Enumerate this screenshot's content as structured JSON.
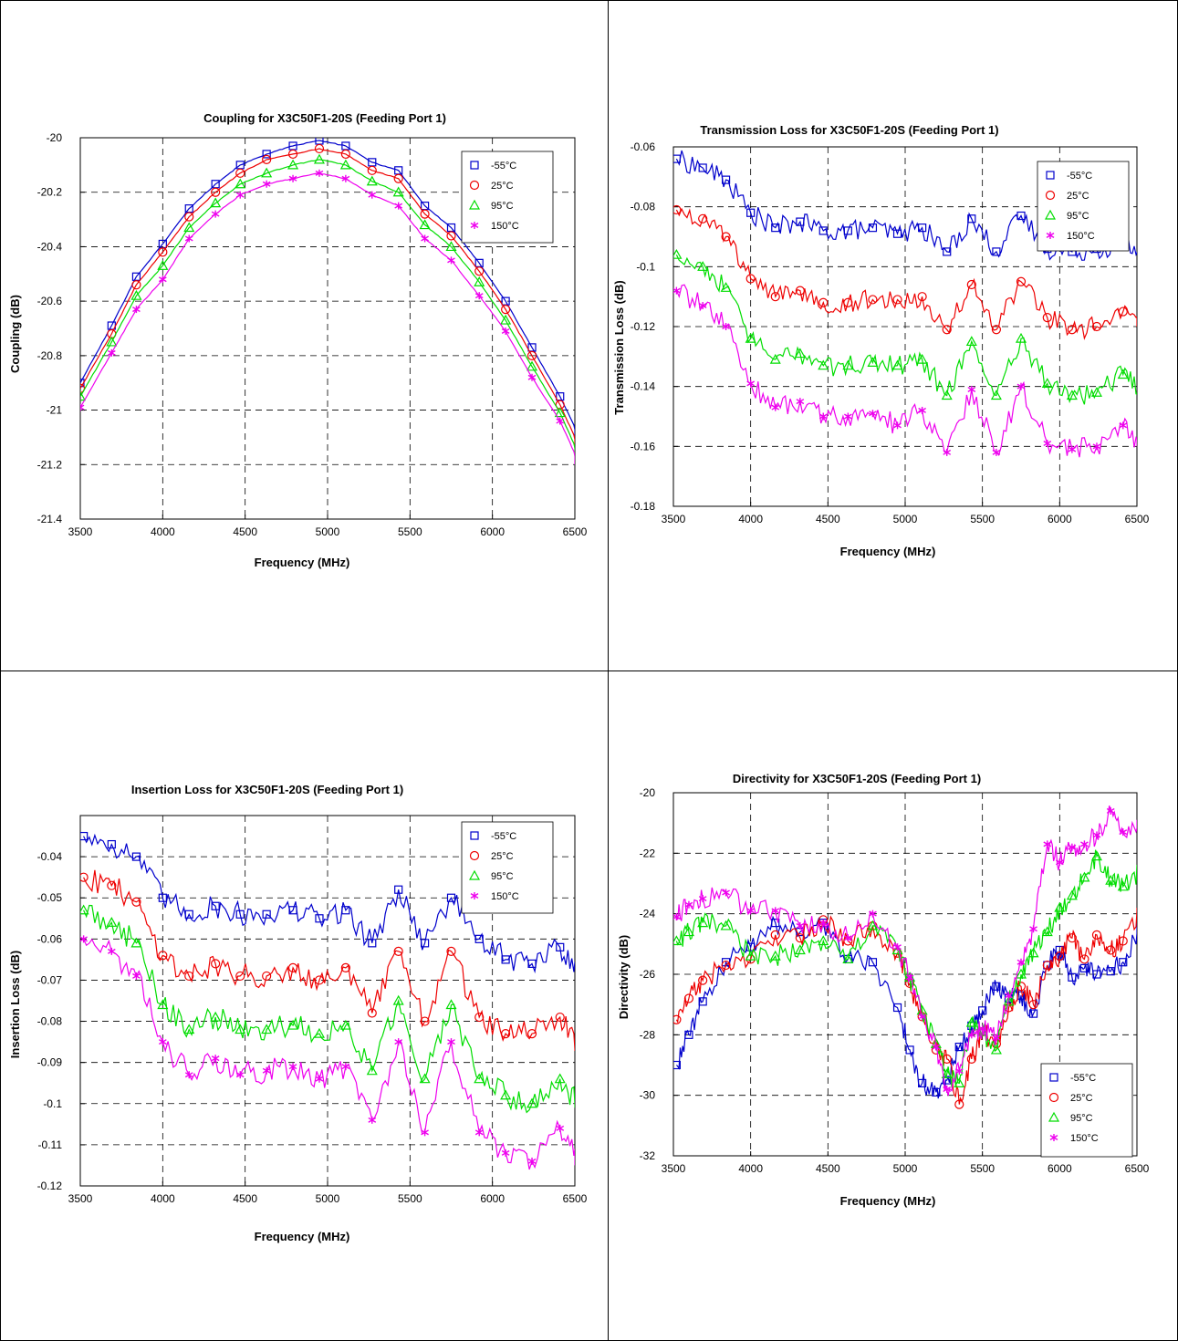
{
  "colors": {
    "s1": "#0000cc",
    "s2": "#ee0000",
    "s3": "#00dd00",
    "s4": "#ee00ee"
  },
  "chart_data": [
    {
      "type": "line",
      "title": "Coupling for X3C50F1-20S (Feeding Port 1)",
      "xlabel": "Frequency (MHz)",
      "ylabel": "Coupling (dB)",
      "xlim": [
        3500,
        6500
      ],
      "ylim": [
        -21.4,
        -20
      ],
      "xticks": [
        3500,
        4000,
        4500,
        5000,
        5500,
        6000,
        6500
      ],
      "yticks": [
        -21.4,
        -21.2,
        -21,
        -20.8,
        -20.6,
        -20.4,
        -20.2,
        -20
      ],
      "xtick_labels": [
        "3500",
        "4000",
        "4500",
        "5000",
        "5500",
        "6000",
        "6500"
      ],
      "ytick_labels": [
        "-21.4",
        "-21.2",
        "-21",
        "-20.8",
        "-20.6",
        "-20.4",
        "-20.2",
        "-20"
      ],
      "grid": true,
      "legend_position": "top-right",
      "series": [
        {
          "name": "-55°C",
          "marker": "square",
          "x": [
            3500,
            3690,
            3840,
            4000,
            4160,
            4320,
            4470,
            4630,
            4790,
            4950,
            5110,
            5270,
            5430,
            5590,
            5750,
            5920,
            6080,
            6240,
            6410,
            6530
          ],
          "values": [
            -20.9,
            -20.69,
            -20.51,
            -20.39,
            -20.26,
            -20.17,
            -20.1,
            -20.06,
            -20.03,
            -20.01,
            -20.03,
            -20.09,
            -20.12,
            -20.25,
            -20.33,
            -20.46,
            -20.6,
            -20.77,
            -20.95,
            -21.1
          ]
        },
        {
          "name": "25°C",
          "marker": "circle",
          "x": [
            3500,
            3690,
            3840,
            4000,
            4160,
            4320,
            4470,
            4630,
            4790,
            4950,
            5110,
            5270,
            5430,
            5590,
            5750,
            5920,
            6080,
            6240,
            6410,
            6530
          ],
          "values": [
            -20.92,
            -20.72,
            -20.54,
            -20.42,
            -20.29,
            -20.2,
            -20.13,
            -20.08,
            -20.06,
            -20.04,
            -20.06,
            -20.12,
            -20.15,
            -20.28,
            -20.36,
            -20.49,
            -20.63,
            -20.8,
            -20.98,
            -21.14
          ]
        },
        {
          "name": "95°C",
          "marker": "triangle",
          "x": [
            3500,
            3690,
            3840,
            4000,
            4160,
            4320,
            4470,
            4630,
            4790,
            4950,
            5110,
            5270,
            5430,
            5590,
            5750,
            5920,
            6080,
            6240,
            6410,
            6530
          ],
          "values": [
            -20.95,
            -20.75,
            -20.58,
            -20.47,
            -20.33,
            -20.24,
            -20.17,
            -20.13,
            -20.1,
            -20.08,
            -20.1,
            -20.16,
            -20.2,
            -20.32,
            -20.4,
            -20.53,
            -20.67,
            -20.84,
            -21.01,
            -21.17
          ]
        },
        {
          "name": "150°C",
          "marker": "asterisk",
          "x": [
            3500,
            3690,
            3840,
            4000,
            4160,
            4320,
            4470,
            4630,
            4790,
            4950,
            5110,
            5270,
            5430,
            5590,
            5750,
            5920,
            6080,
            6240,
            6410,
            6530
          ],
          "values": [
            -20.99,
            -20.79,
            -20.63,
            -20.52,
            -20.37,
            -20.28,
            -20.21,
            -20.17,
            -20.15,
            -20.13,
            -20.15,
            -20.21,
            -20.25,
            -20.37,
            -20.45,
            -20.58,
            -20.71,
            -20.88,
            -21.04,
            -21.2
          ]
        }
      ]
    },
    {
      "type": "line",
      "title": "Transmission Loss for X3C50F1-20S (Feeding Port 1)",
      "xlabel": "Frequency (MHz)",
      "ylabel": "Transmission Loss (dB)",
      "xlim": [
        3500,
        6500
      ],
      "ylim": [
        -0.18,
        -0.06
      ],
      "xticks": [
        3500,
        4000,
        4500,
        5000,
        5500,
        6000,
        6500
      ],
      "yticks": [
        -0.18,
        -0.16,
        -0.14,
        -0.12,
        -0.1,
        -0.08,
        -0.06
      ],
      "xtick_labels": [
        "3500",
        "4000",
        "4500",
        "5000",
        "5500",
        "6000",
        "6500"
      ],
      "ytick_labels": [
        "-0.18",
        "-0.16",
        "-0.14",
        "-0.12",
        "-0.1",
        "-0.08",
        "-0.06"
      ],
      "grid": true,
      "legend_position": "top-right",
      "series": [
        {
          "name": "-55°C",
          "marker": "square",
          "x": [
            3520,
            3690,
            3840,
            4000,
            4160,
            4320,
            4470,
            4630,
            4790,
            4950,
            5110,
            5270,
            5430,
            5590,
            5750,
            5920,
            6080,
            6240,
            6410,
            6530
          ],
          "values": [
            -0.064,
            -0.067,
            -0.071,
            -0.082,
            -0.087,
            -0.085,
            -0.088,
            -0.088,
            -0.087,
            -0.089,
            -0.087,
            -0.095,
            -0.084,
            -0.095,
            -0.083,
            -0.094,
            -0.095,
            -0.094,
            -0.093,
            -0.095
          ]
        },
        {
          "name": "25°C",
          "marker": "circle",
          "x": [
            3520,
            3690,
            3840,
            4000,
            4160,
            4320,
            4470,
            4630,
            4790,
            4950,
            5110,
            5270,
            5430,
            5590,
            5750,
            5920,
            6080,
            6240,
            6410,
            6530
          ],
          "values": [
            -0.081,
            -0.084,
            -0.09,
            -0.104,
            -0.11,
            -0.108,
            -0.112,
            -0.112,
            -0.111,
            -0.111,
            -0.11,
            -0.121,
            -0.106,
            -0.121,
            -0.105,
            -0.117,
            -0.121,
            -0.12,
            -0.115,
            -0.12
          ]
        },
        {
          "name": "95°C",
          "marker": "triangle",
          "x": [
            3520,
            3690,
            3840,
            4000,
            4160,
            4320,
            4470,
            4630,
            4790,
            4950,
            5110,
            5270,
            5430,
            5590,
            5750,
            5920,
            6080,
            6240,
            6410,
            6530
          ],
          "values": [
            -0.096,
            -0.1,
            -0.107,
            -0.124,
            -0.131,
            -0.129,
            -0.133,
            -0.133,
            -0.132,
            -0.133,
            -0.131,
            -0.143,
            -0.125,
            -0.143,
            -0.124,
            -0.139,
            -0.143,
            -0.142,
            -0.136,
            -0.142
          ]
        },
        {
          "name": "150°C",
          "marker": "asterisk",
          "x": [
            3520,
            3690,
            3840,
            4000,
            4160,
            4320,
            4470,
            4630,
            4790,
            4950,
            5110,
            5270,
            5430,
            5590,
            5750,
            5920,
            6080,
            6240,
            6410,
            6530
          ],
          "values": [
            -0.108,
            -0.113,
            -0.12,
            -0.139,
            -0.147,
            -0.145,
            -0.15,
            -0.15,
            -0.149,
            -0.153,
            -0.148,
            -0.162,
            -0.141,
            -0.162,
            -0.14,
            -0.159,
            -0.161,
            -0.16,
            -0.153,
            -0.16
          ]
        }
      ]
    },
    {
      "type": "line",
      "title": "Insertion Loss for X3C50F1-20S (Feeding Port 1)",
      "xlabel": "Frequency (MHz)",
      "ylabel": "Insertion Loss (dB)",
      "xlim": [
        3500,
        6500
      ],
      "ylim": [
        -0.12,
        -0.03
      ],
      "xticks": [
        3500,
        4000,
        4500,
        5000,
        5500,
        6000,
        6500
      ],
      "yticks": [
        -0.12,
        -0.11,
        -0.1,
        -0.09,
        -0.08,
        -0.07,
        -0.06,
        -0.05,
        -0.04
      ],
      "xtick_labels": [
        "3500",
        "4000",
        "4500",
        "5000",
        "5500",
        "6000",
        "6500"
      ],
      "ytick_labels": [
        "-0.12",
        "-0.11",
        "-0.1",
        "-0.09",
        "-0.08",
        "-0.07",
        "-0.06",
        "-0.05",
        "-0.04"
      ],
      "grid": true,
      "legend_position": "top-right",
      "series": [
        {
          "name": "-55°C",
          "marker": "square",
          "x": [
            3520,
            3690,
            3840,
            4000,
            4160,
            4320,
            4470,
            4630,
            4790,
            4950,
            5110,
            5270,
            5430,
            5590,
            5750,
            5920,
            6080,
            6240,
            6410,
            6530
          ],
          "values": [
            -0.035,
            -0.037,
            -0.04,
            -0.05,
            -0.054,
            -0.052,
            -0.054,
            -0.054,
            -0.053,
            -0.055,
            -0.053,
            -0.061,
            -0.048,
            -0.061,
            -0.05,
            -0.06,
            -0.065,
            -0.066,
            -0.062,
            -0.067
          ]
        },
        {
          "name": "25°C",
          "marker": "circle",
          "x": [
            3520,
            3690,
            3840,
            4000,
            4160,
            4320,
            4470,
            4630,
            4790,
            4950,
            5110,
            5270,
            5430,
            5590,
            5750,
            5920,
            6080,
            6240,
            6410,
            6530
          ],
          "values": [
            -0.045,
            -0.047,
            -0.051,
            -0.064,
            -0.069,
            -0.066,
            -0.069,
            -0.069,
            -0.067,
            -0.07,
            -0.067,
            -0.078,
            -0.063,
            -0.08,
            -0.063,
            -0.079,
            -0.083,
            -0.083,
            -0.079,
            -0.085
          ]
        },
        {
          "name": "95°C",
          "marker": "triangle",
          "x": [
            3520,
            3690,
            3840,
            4000,
            4160,
            4320,
            4470,
            4630,
            4790,
            4950,
            5110,
            5270,
            5430,
            5590,
            5750,
            5920,
            6080,
            6240,
            6410,
            6530
          ],
          "values": [
            -0.053,
            -0.056,
            -0.061,
            -0.076,
            -0.082,
            -0.079,
            -0.082,
            -0.082,
            -0.081,
            -0.083,
            -0.081,
            -0.092,
            -0.075,
            -0.094,
            -0.076,
            -0.094,
            -0.098,
            -0.1,
            -0.094,
            -0.101
          ]
        },
        {
          "name": "150°C",
          "marker": "asterisk",
          "x": [
            3520,
            3690,
            3840,
            4000,
            4160,
            4320,
            4470,
            4630,
            4790,
            4950,
            5110,
            5270,
            5430,
            5590,
            5750,
            5920,
            6080,
            6240,
            6410,
            6530
          ],
          "values": [
            -0.06,
            -0.063,
            -0.069,
            -0.085,
            -0.093,
            -0.089,
            -0.093,
            -0.092,
            -0.091,
            -0.094,
            -0.091,
            -0.104,
            -0.085,
            -0.107,
            -0.085,
            -0.107,
            -0.112,
            -0.114,
            -0.106,
            -0.115
          ]
        }
      ]
    },
    {
      "type": "line",
      "title": "Directivity for X3C50F1-20S (Feeding Port 1)",
      "xlabel": "Frequency (MHz)",
      "ylabel": "Directivity (dB)",
      "xlim": [
        3500,
        6500
      ],
      "ylim": [
        -32,
        -20
      ],
      "xticks": [
        3500,
        4000,
        4500,
        5000,
        5500,
        6000,
        6500
      ],
      "yticks": [
        -32,
        -30,
        -28,
        -26,
        -24,
        -22,
        -20
      ],
      "xtick_labels": [
        "3500",
        "4000",
        "4500",
        "5000",
        "5500",
        "6000",
        "6500"
      ],
      "ytick_labels": [
        "-32",
        "-30",
        "-28",
        "-26",
        "-24",
        "-22",
        "-20"
      ],
      "grid": true,
      "legend_position": "bottom-right",
      "series": [
        {
          "name": "-55°C",
          "marker": "square",
          "x": [
            3520,
            3600,
            3690,
            3840,
            4000,
            4160,
            4320,
            4470,
            4630,
            4790,
            4950,
            5030,
            5110,
            5200,
            5270,
            5350,
            5430,
            5500,
            5590,
            5670,
            5750,
            5830,
            5920,
            6000,
            6080,
            6160,
            6240,
            6330,
            6410,
            6530
          ],
          "values": [
            -29,
            -28,
            -26.9,
            -25.6,
            -25.1,
            -24.3,
            -24.6,
            -24.3,
            -25.5,
            -25.6,
            -27.1,
            -28.5,
            -29.6,
            -29.9,
            -29.5,
            -28.4,
            -27.7,
            -27.2,
            -26.4,
            -26.8,
            -26.7,
            -27.3,
            -25.7,
            -25.2,
            -26.1,
            -25.8,
            -26,
            -25.9,
            -25.6,
            -24.3
          ]
        },
        {
          "name": "25°C",
          "marker": "circle",
          "x": [
            3520,
            3600,
            3690,
            3840,
            4000,
            4160,
            4320,
            4470,
            4630,
            4790,
            4950,
            5030,
            5110,
            5200,
            5270,
            5350,
            5430,
            5500,
            5590,
            5670,
            5750,
            5830,
            5920,
            6000,
            6080,
            6160,
            6240,
            6330,
            6410,
            6530
          ],
          "values": [
            -27.5,
            -26.8,
            -26.2,
            -25.7,
            -25.5,
            -24.7,
            -24.8,
            -24.2,
            -24.9,
            -24.4,
            -25.3,
            -26.3,
            -27.4,
            -28.5,
            -28.8,
            -30.3,
            -28.8,
            -27.9,
            -28.3,
            -27.1,
            -26.4,
            -27,
            -25.7,
            -25.4,
            -24.8,
            -25.5,
            -24.7,
            -25.2,
            -24.9,
            -23.8
          ]
        },
        {
          "name": "95°C",
          "marker": "triangle",
          "x": [
            3520,
            3600,
            3690,
            3840,
            4000,
            4160,
            4320,
            4470,
            4630,
            4790,
            4950,
            5030,
            5110,
            5200,
            5270,
            5350,
            5430,
            5500,
            5590,
            5670,
            5750,
            5830,
            5920,
            6000,
            6080,
            6160,
            6240,
            6330,
            6410,
            6530
          ],
          "values": [
            -24.9,
            -24.6,
            -24.3,
            -24.4,
            -25.4,
            -25.4,
            -25.2,
            -24.9,
            -25.5,
            -24.4,
            -25.2,
            -26.1,
            -27.2,
            -28.3,
            -29.3,
            -29.6,
            -27.6,
            -27.9,
            -28.5,
            -26.9,
            -26,
            -25.3,
            -24.6,
            -23.8,
            -23.4,
            -22.8,
            -22.1,
            -22.9,
            -23.1,
            -22.6
          ]
        },
        {
          "name": "150°C",
          "marker": "asterisk",
          "x": [
            3520,
            3600,
            3690,
            3840,
            4000,
            4160,
            4320,
            4470,
            4630,
            4790,
            4950,
            5030,
            5110,
            5200,
            5270,
            5350,
            5430,
            5500,
            5590,
            5670,
            5750,
            5830,
            5920,
            6000,
            6080,
            6160,
            6240,
            6330,
            6410,
            6530
          ],
          "values": [
            -24.1,
            -23.7,
            -23.5,
            -23.3,
            -23.9,
            -23.9,
            -24.4,
            -24.3,
            -24.8,
            -24,
            -25.1,
            -26.1,
            -27.4,
            -28.4,
            -29.8,
            -29.2,
            -28,
            -27.8,
            -28.1,
            -26.7,
            -25.6,
            -24.5,
            -21.7,
            -22.3,
            -21.8,
            -21.7,
            -21.4,
            -20.6,
            -21.3,
            -20.9
          ]
        }
      ]
    }
  ]
}
